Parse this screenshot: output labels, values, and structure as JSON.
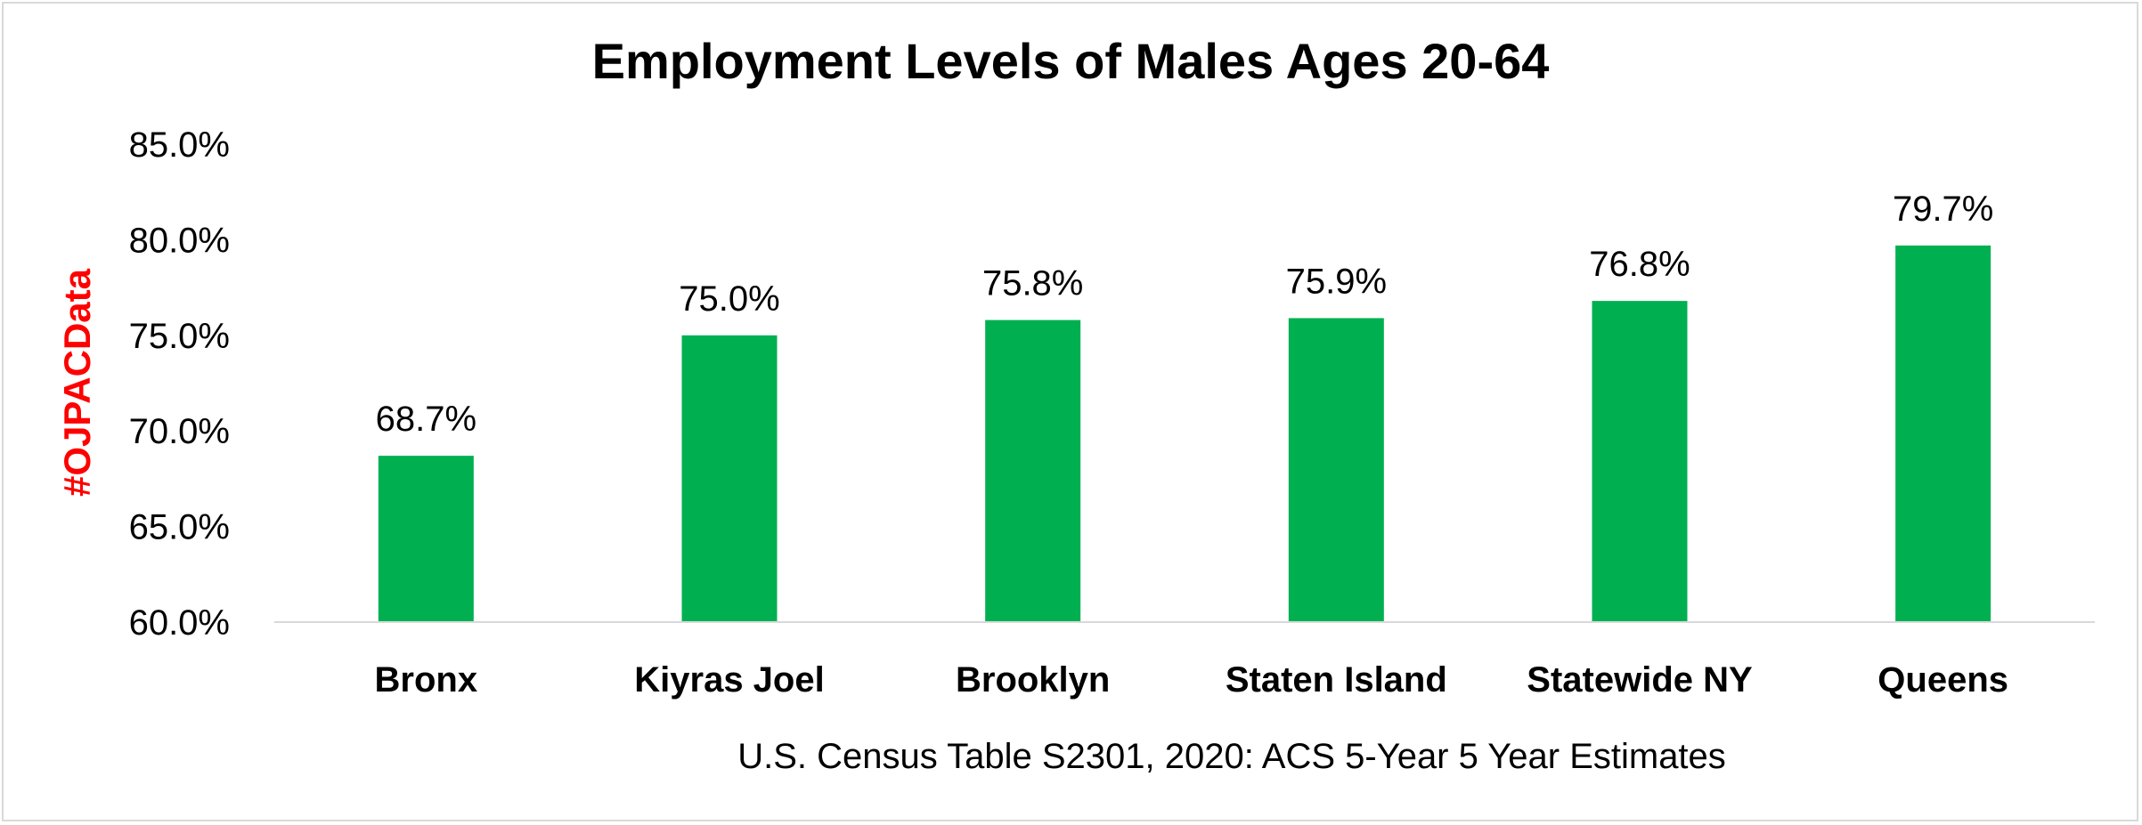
{
  "chart_data": {
    "type": "bar",
    "title": "Employment Levels of Males Ages 20-64",
    "xlabel": "U.S. Census Table S2301, 2020: ACS 5-Year 5 Year Estimates",
    "ylabel": "",
    "categories": [
      "Bronx",
      "Kiyras Joel",
      "Brooklyn",
      "Staten Island",
      "Statewide NY",
      "Queens"
    ],
    "values": [
      68.7,
      75.0,
      75.8,
      75.9,
      76.8,
      79.7
    ],
    "data_labels": [
      "68.7%",
      "75.0%",
      "75.8%",
      "75.9%",
      "76.8%",
      "79.7%"
    ],
    "ylim": [
      60,
      85
    ],
    "yticks": [
      60,
      65,
      70,
      75,
      80,
      85
    ],
    "ytick_labels": [
      "60.0%",
      "65.0%",
      "70.0%",
      "75.0%",
      "80.0%",
      "85.0%"
    ],
    "grid": false,
    "legend": "none",
    "bar_color": "#00b050",
    "watermark": {
      "text": "#OJPACData",
      "color": "#ff0000"
    }
  }
}
